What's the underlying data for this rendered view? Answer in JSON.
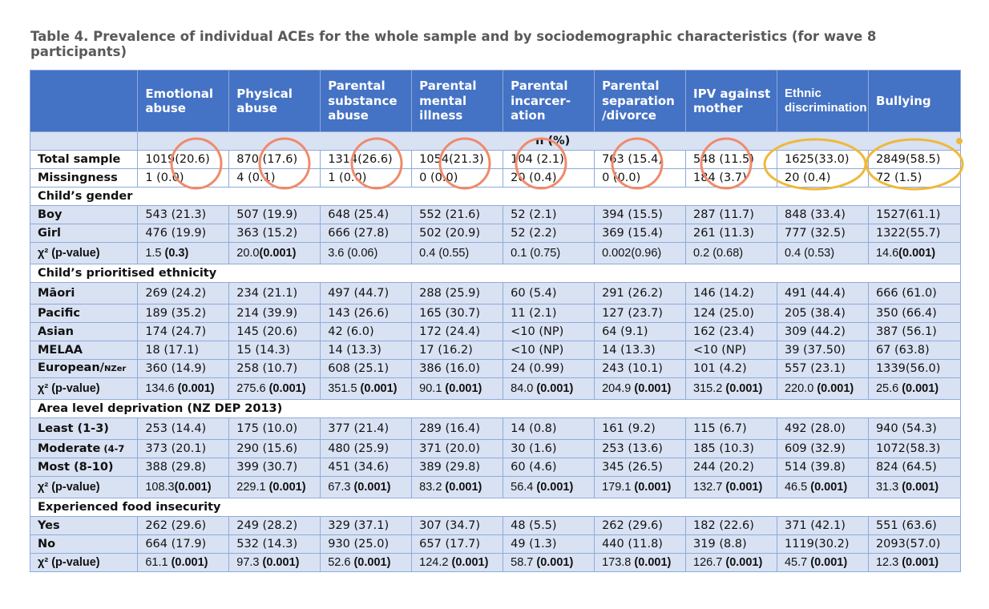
{
  "caption": "Table 4. Prevalence of individual ACEs for the whole sample and by sociodemographic characteristics (for wave 8 participants)",
  "columns": [
    "",
    "Emotional abuse",
    "Physical abuse",
    "Parental substance abuse",
    "Parental mental illness",
    "Parental incarcer-ation",
    "Parental separation /divorce",
    "IPV against mother",
    "Ethnic discrimination",
    "Bullying"
  ],
  "subheader": "n (%)",
  "rows": {
    "total": {
      "label": "Total sample",
      "cells": [
        "1019(20.6)",
        "870 (17.6)",
        "1314(26.6)",
        "1054(21.3)",
        "104 (2.1)",
        "763 (15.4)",
        "548 (11.5)",
        "1625(33.0)",
        "2849(58.5)"
      ]
    },
    "missing": {
      "label": "Missingness",
      "cells": [
        "1 (0.0)",
        "4 (0.1)",
        "1 (0.0)",
        "0 (0.0)",
        "20 (0.4)",
        "0 (0.0)",
        "184 (3.7)",
        "20 (0.4)",
        "72 (1.5)"
      ]
    },
    "sec_gender": "Child’s gender",
    "boy": {
      "label": "Boy",
      "cells": [
        "543 (21.3)",
        "507 (19.9)",
        "648 (25.4)",
        "552 (21.6)",
        "52 (2.1)",
        "394 (15.5)",
        "287 (11.7)",
        "848 (33.4)",
        "1527(61.1)"
      ]
    },
    "girl": {
      "label": "Girl",
      "cells": [
        "476 (19.9)",
        "363 (15.2)",
        "666 (27.8)",
        "502 (20.9)",
        "52 (2.2)",
        "369 (15.4)",
        "261 (11.3)",
        "777 (32.5)",
        "1322(55.7)"
      ]
    },
    "chi_gender": {
      "label": "χ² (p-value)",
      "cells": [
        {
          "v": "1.5 ",
          "p": "(0.3)"
        },
        {
          "v": "20.0",
          "p": "(0.001)"
        },
        {
          "v": "3.6 (0.06)",
          "p": ""
        },
        {
          "v": "0.4 (0.55)",
          "p": ""
        },
        {
          "v": "0.1 (0.75)",
          "p": ""
        },
        {
          "v": "0.002(0.96)",
          "p": ""
        },
        {
          "v": "0.2 (0.68)",
          "p": ""
        },
        {
          "v": "0.4 (0.53)",
          "p": ""
        },
        {
          "v": "14.6",
          "p": "(0.001)"
        }
      ]
    },
    "sec_ethnicity": "Child’s prioritised ethnicity",
    "maori": {
      "label": "Māori",
      "cells": [
        "269 (24.2)",
        "234 (21.1)",
        "497 (44.7)",
        "288 (25.9)",
        "60 (5.4)",
        "291 (26.2)",
        "146 (14.2)",
        "491 (44.4)",
        "666 (61.0)"
      ]
    },
    "pacific": {
      "label": "Pacific",
      "cells": [
        "189 (35.2)",
        "214 (39.9)",
        "143 (26.6)",
        "165 (30.7)",
        "11 (2.1)",
        "127 (23.7)",
        "124 (25.0)",
        "205 (38.4)",
        "350 (66.4)"
      ]
    },
    "asian": {
      "label": "Asian",
      "cells": [
        "174 (24.7)",
        "145 (20.6)",
        "42 (6.0)",
        "172 (24.4)",
        "<10 (NP)",
        "64 (9.1)",
        "162 (23.4)",
        "309 (44.2)",
        "387 (56.1)"
      ]
    },
    "melaa": {
      "label": "MELAA",
      "cells": [
        "18 (17.1)",
        "15 (14.3)",
        "14 (13.3)",
        "17 (16.2)",
        "<10 (NP)",
        "14 (13.3)",
        "<10 (NP)",
        "39 (37.50)",
        "67 (63.8)"
      ]
    },
    "european": {
      "label": "European/",
      "label_small": "NZer",
      "cells": [
        "360 (14.9)",
        "258 (10.7)",
        "608 (25.1)",
        "386 (16.0)",
        "24 (0.99)",
        "243 (10.1)",
        "101 (4.2)",
        "557 (23.1)",
        "1339(56.0)"
      ]
    },
    "chi_ethnicity": {
      "label": "χ² (p-value)",
      "cells": [
        {
          "v": "134.6 ",
          "p": "(0.001)"
        },
        {
          "v": "275.6 ",
          "p": "(0.001)"
        },
        {
          "v": "351.5 ",
          "p": "(0.001)"
        },
        {
          "v": "90.1 ",
          "p": "(0.001)"
        },
        {
          "v": "84.0 ",
          "p": "(0.001)"
        },
        {
          "v": "204.9 ",
          "p": "(0.001)"
        },
        {
          "v": "315.2 ",
          "p": "(0.001)"
        },
        {
          "v": "220.0 ",
          "p": "(0.001)"
        },
        {
          "v": "25.6 ",
          "p": "(0.001)"
        }
      ]
    },
    "sec_deprivation": "Area level deprivation (NZ DEP 2013)",
    "least": {
      "label": "Least (1-3)",
      "cells": [
        "253 (14.4)",
        "175 (10.0)",
        "377 (21.4)",
        "289 (16.4)",
        "14 (0.8)",
        "161 (9.2)",
        "115 (6.7)",
        "492 (28.0)",
        "940 (54.3)"
      ]
    },
    "moderate": {
      "label": "Moderate",
      "label_small": " (4-7",
      "cells": [
        "373 (20.1)",
        "290 (15.6)",
        "480 (25.9)",
        "371 (20.0)",
        "30 (1.6)",
        "253 (13.6)",
        "185 (10.3)",
        "609 (32.9)",
        "1072(58.3)"
      ]
    },
    "most": {
      "label": "Most (8-10)",
      "cells": [
        "388 (29.8)",
        "399 (30.7)",
        "451 (34.6)",
        "389 (29.8)",
        "60 (4.6)",
        "345 (26.5)",
        "244 (20.2)",
        "514 (39.8)",
        "824 (64.5)"
      ]
    },
    "chi_deprivation": {
      "label": "χ² (p-value)",
      "cells": [
        {
          "v": "108.3",
          "p": "(0.001)"
        },
        {
          "v": "229.1 ",
          "p": "(0.001)"
        },
        {
          "v": "67.3 ",
          "p": "(0.001)"
        },
        {
          "v": "83.2 ",
          "p": "(0.001)"
        },
        {
          "v": "56.4 ",
          "p": "(0.001)"
        },
        {
          "v": "179.1 ",
          "p": "(0.001)"
        },
        {
          "v": "132.7 ",
          "p": "(0.001)"
        },
        {
          "v": "46.5 ",
          "p": "(0.001)"
        },
        {
          "v": "31.3 ",
          "p": "(0.001)"
        }
      ]
    },
    "sec_food": "Experienced food insecurity",
    "yes": {
      "label": "Yes",
      "cells": [
        "262 (29.6)",
        "249 (28.2)",
        "329 (37.1)",
        "307 (34.7)",
        "48 (5.5)",
        "262 (29.6)",
        "182 (22.6)",
        "371 (42.1)",
        "551 (63.6)"
      ]
    },
    "no": {
      "label": "No",
      "cells": [
        "664 (17.9)",
        "532 (14.3)",
        "930 (25.0)",
        "657 (17.7)",
        "49 (1.3)",
        "440 (11.8)",
        "319 (8.8)",
        "1119(30.2)",
        "2093(57.0)"
      ]
    },
    "chi_food": {
      "label": "χ² (p-value)",
      "cells": [
        {
          "v": "61.1 ",
          "p": "(0.001)"
        },
        {
          "v": "97.3 ",
          "p": "(0.001)"
        },
        {
          "v": "52.6 ",
          "p": "(0.001)"
        },
        {
          "v": "124.2 ",
          "p": "(0.001)"
        },
        {
          "v": "58.7 ",
          "p": "(0.001)"
        },
        {
          "v": "173.8 ",
          "p": "(0.001)"
        },
        {
          "v": "126.7 ",
          "p": "(0.001)"
        },
        {
          "v": "45.7 ",
          "p": "(0.001)"
        },
        {
          "v": "12.3 ",
          "p": "(0.001)"
        }
      ]
    }
  },
  "colors": {
    "header_bg": "#4472c4",
    "row_blue": "#d9e2f3",
    "orange_circle": "#f08a6a",
    "gold_ellipse": "#efb83a"
  }
}
